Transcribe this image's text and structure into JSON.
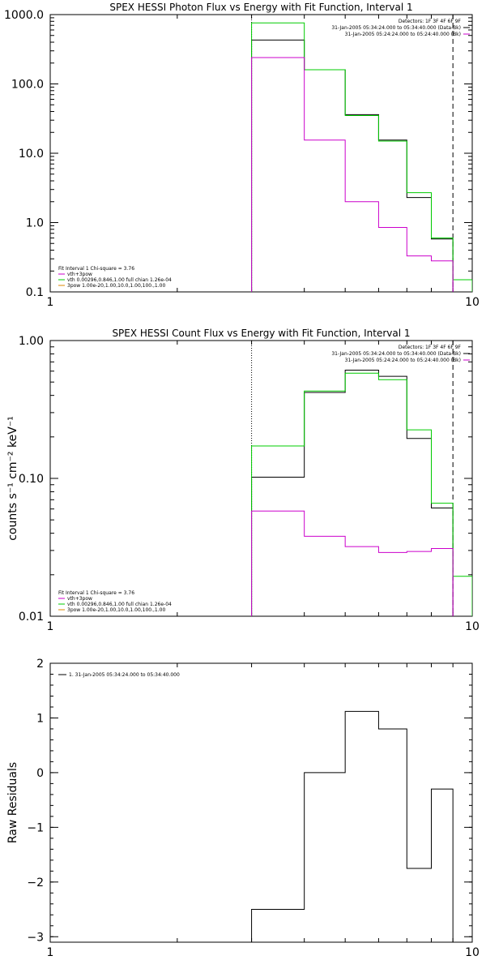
{
  "chart_data": [
    {
      "type": "line",
      "step": true,
      "title": "SPEX HESSI Photon Flux vs Energy with Fit Function, Interval 1",
      "xlabel": "",
      "ylabel": "",
      "xscale": "log",
      "yscale": "log",
      "xlim": [
        1,
        10
      ],
      "ylim": [
        0.1,
        1000
      ],
      "xticks": [
        {
          "v": 1,
          "label": "1"
        },
        {
          "v": 10,
          "label": "10"
        }
      ],
      "yticks": [
        {
          "v": 0.1,
          "label": "0.1"
        },
        {
          "v": 1,
          "label": "1.0"
        },
        {
          "v": 10,
          "label": "10.0"
        },
        {
          "v": 100,
          "label": "100.0"
        },
        {
          "v": 1000,
          "label": "1000.0"
        }
      ],
      "bin_edges": [
        3,
        4,
        5,
        6,
        7,
        8,
        9,
        10
      ],
      "series": [
        {
          "color": "#000000",
          "values": [
            430,
            160,
            36,
            15.5,
            2.3,
            0.58
          ]
        },
        {
          "color": "#00cc00",
          "values": [
            760,
            160,
            35,
            15,
            2.7,
            0.6,
            0.15
          ]
        },
        {
          "color": "#cc00cc",
          "values": [
            240,
            15.5,
            2,
            0.85,
            0.33,
            0.28
          ]
        }
      ],
      "vlines": [
        {
          "x": 3,
          "style": "dotted"
        },
        {
          "x": 9,
          "style": "dashed"
        }
      ],
      "legend_tr": [
        {
          "text": "Detectors: 1F 3F 4F 6F 9F",
          "color": ""
        },
        {
          "text": "31-Jan-2005 05:34:24.000 to 05:34:40.000 (Data-Bk)",
          "color": "#000000"
        },
        {
          "text": "31-Jan-2005 05:24:24.000 to 05:24:40.000 (Bk)",
          "color": "#cc00cc"
        }
      ],
      "legend_bl": [
        {
          "text": "Fit Interval 1    Chi-square = 3.76",
          "color": ""
        },
        {
          "text": "vth+3pow",
          "color": "#cc00cc"
        },
        {
          "text": "vth 0.00296,0.846,1.00   full chian 1.26e-04",
          "color": "#00cc00"
        },
        {
          "text": "3pow 1.00e-20,1.00,10.0,1.00,100.,1.00",
          "color": "#dd8800"
        }
      ]
    },
    {
      "type": "line",
      "step": true,
      "title": "SPEX HESSI Count Flux vs Energy with Fit Function, Interval 1",
      "xlabel": "",
      "ylabel": "counts s⁻¹ cm⁻² keV⁻¹",
      "xscale": "log",
      "yscale": "log",
      "xlim": [
        1,
        10
      ],
      "ylim": [
        0.01,
        1
      ],
      "xticks": [
        {
          "v": 1,
          "label": "1"
        },
        {
          "v": 10,
          "label": "10"
        }
      ],
      "yticks": [
        {
          "v": 0.01,
          "label": "0.01"
        },
        {
          "v": 0.1,
          "label": "0.10"
        },
        {
          "v": 1,
          "label": "1.00"
        }
      ],
      "bin_edges": [
        3,
        4,
        5,
        6,
        7,
        8,
        9,
        10
      ],
      "series": [
        {
          "color": "#000000",
          "values": [
            0.102,
            0.42,
            0.61,
            0.55,
            0.195,
            0.061
          ]
        },
        {
          "color": "#00cc00",
          "values": [
            0.172,
            0.43,
            0.58,
            0.52,
            0.225,
            0.066,
            0.0195
          ]
        },
        {
          "color": "#cc00cc",
          "values": [
            0.058,
            0.038,
            0.032,
            0.029,
            0.0295,
            0.031
          ]
        }
      ],
      "vlines": [
        {
          "x": 3,
          "style": "dotted"
        },
        {
          "x": 9,
          "style": "dashed"
        }
      ],
      "legend_tr": [
        {
          "text": "Detectors: 1F 3F 4F 6F 9F",
          "color": ""
        },
        {
          "text": "31-Jan-2005 05:34:24.000 to 05:34:40.000 (Data-Bk)",
          "color": "#000000"
        },
        {
          "text": "31-Jan-2005 05:24:24.000 to 05:24:40.000 (Bk)",
          "color": "#cc00cc"
        }
      ],
      "legend_bl": [
        {
          "text": "Fit Interval 1    Chi-square = 3.76",
          "color": ""
        },
        {
          "text": "vth+3pow",
          "color": "#cc00cc"
        },
        {
          "text": "vth 0.00296,0.846,1.00   full chian 1.26e-04",
          "color": "#00cc00"
        },
        {
          "text": "3pow 1.00e-20,1.00,10.0,1.00,100.,1.00",
          "color": "#dd8800"
        }
      ]
    },
    {
      "type": "line",
      "step": true,
      "title": "",
      "xlabel": "",
      "ylabel": "Raw Residuals",
      "xscale": "log",
      "yscale": "linear",
      "xlim": [
        1,
        10
      ],
      "ylim": [
        -3.1,
        2
      ],
      "xticks": [
        {
          "v": 1,
          "label": "1"
        },
        {
          "v": 10,
          "label": "10"
        }
      ],
      "yticks": [
        {
          "v": -3,
          "label": "−3"
        },
        {
          "v": -2,
          "label": "−2"
        },
        {
          "v": -1,
          "label": "−1"
        },
        {
          "v": 0,
          "label": "0"
        },
        {
          "v": 1,
          "label": "1"
        },
        {
          "v": 2,
          "label": "2"
        }
      ],
      "bin_edges": [
        3,
        4,
        5,
        6,
        7,
        8,
        9
      ],
      "series": [
        {
          "color": "#000000",
          "values": [
            -2.5,
            0.0,
            1.12,
            0.8,
            -1.75,
            -0.3
          ]
        }
      ],
      "vlines": [],
      "legend_tr": [],
      "legend_tl": [
        {
          "text": "1. 31-Jan-2005 05:34:24.000 to 05:34:40.000",
          "color": "#000000"
        }
      ],
      "legend_bl": []
    }
  ]
}
